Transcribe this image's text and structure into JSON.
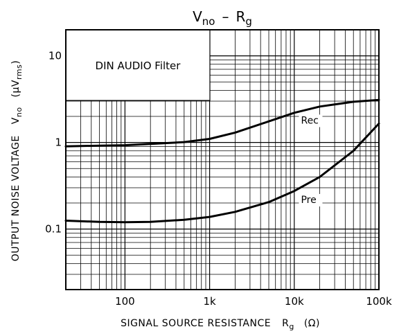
{
  "chart_data": {
    "type": "line",
    "title": "V",
    "title_sub": "no",
    "title_sep": "–",
    "title_r": "R",
    "title_r_sub": "g",
    "xscale": "log",
    "yscale": "log",
    "xlim": [
      20,
      100000
    ],
    "ylim": [
      0.02,
      20
    ],
    "grid": true,
    "x_ticks": [
      {
        "value": 100,
        "label": "100"
      },
      {
        "value": 1000,
        "label": "1k"
      },
      {
        "value": 10000,
        "label": "10k"
      },
      {
        "value": 100000,
        "label": "100k"
      }
    ],
    "y_ticks": [
      {
        "value": 0.1,
        "label": "0.1"
      },
      {
        "value": 1,
        "label": "1"
      },
      {
        "value": 10,
        "label": "10"
      }
    ],
    "xlabel": {
      "text": "SIGNAL SOURCE RESISTANCE",
      "sym": "R",
      "sub": "g",
      "unit": "(Ω)"
    },
    "ylabel": {
      "text": "OUTPUT NOISE VOLTAGE",
      "sym": "V",
      "sub": "no",
      "unit_pre": "(μV",
      "unit_sub": "rms",
      "unit_post": ")"
    },
    "annotation": "DIN AUDIO Filter",
    "series": [
      {
        "name": "Rec",
        "color": "#000000",
        "x": [
          20,
          50,
          100,
          200,
          500,
          1000,
          2000,
          5000,
          10000,
          20000,
          50000,
          100000
        ],
        "y": [
          0.9,
          0.92,
          0.93,
          0.96,
          1.01,
          1.1,
          1.3,
          1.75,
          2.2,
          2.6,
          2.95,
          3.1
        ]
      },
      {
        "name": "Pre",
        "color": "#000000",
        "x": [
          20,
          50,
          100,
          200,
          500,
          1000,
          2000,
          5000,
          10000,
          20000,
          50000,
          100000
        ],
        "y": [
          0.125,
          0.121,
          0.12,
          0.121,
          0.128,
          0.138,
          0.158,
          0.205,
          0.275,
          0.4,
          0.8,
          1.65
        ]
      }
    ]
  }
}
